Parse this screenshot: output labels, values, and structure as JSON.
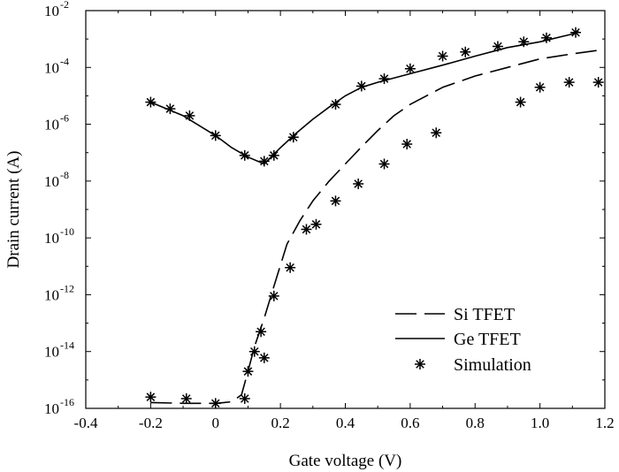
{
  "chart_data": {
    "type": "line",
    "xlabel": "Gate voltage (V)",
    "ylabel": "Drain current (A)",
    "xlim": [
      -0.4,
      1.2
    ],
    "ylim": [
      1e-16,
      0.01
    ],
    "yscale": "log",
    "x_ticks": [
      "-0.4",
      "-0.2",
      "0",
      "0.2",
      "0.4",
      "0.6",
      "0.8",
      "1.0",
      "1.2"
    ],
    "y_ticks": [
      {
        "base": "10",
        "exp": "-16"
      },
      {
        "base": "10",
        "exp": "-14"
      },
      {
        "base": "10",
        "exp": "-12"
      },
      {
        "base": "10",
        "exp": "-10"
      },
      {
        "base": "10",
        "exp": "-8"
      },
      {
        "base": "10",
        "exp": "-6"
      },
      {
        "base": "10",
        "exp": "-4"
      },
      {
        "base": "10",
        "exp": "-2"
      }
    ],
    "grid": false,
    "legend_position": "bottom-right",
    "series": [
      {
        "name": "Si TFET",
        "style": "dashed",
        "x": [
          -0.2,
          -0.1,
          0.0,
          0.05,
          0.08,
          0.1,
          0.12,
          0.15,
          0.18,
          0.22,
          0.26,
          0.3,
          0.35,
          0.4,
          0.45,
          0.5,
          0.55,
          0.6,
          0.7,
          0.8,
          0.9,
          1.0,
          1.1,
          1.18
        ],
        "y": [
          1.6e-16,
          1.5e-16,
          1.5e-16,
          1.7e-16,
          3e-16,
          2e-15,
          1.5e-14,
          1.5e-13,
          2e-12,
          6e-11,
          4e-10,
          2e-09,
          1e-08,
          4e-08,
          1.6e-07,
          6e-07,
          2e-06,
          5e-06,
          2e-05,
          5e-05,
          0.0001,
          0.0002,
          0.0003,
          0.0004
        ]
      },
      {
        "name": "Ge TFET",
        "style": "solid",
        "x": [
          -0.2,
          -0.1,
          0.0,
          0.05,
          0.1,
          0.15,
          0.2,
          0.25,
          0.3,
          0.35,
          0.4,
          0.45,
          0.5,
          0.6,
          0.7,
          0.8,
          0.9,
          1.0,
          1.1,
          1.12
        ],
        "y": [
          6e-06,
          2e-06,
          4e-07,
          1.5e-07,
          7e-08,
          4e-08,
          1.5e-07,
          5e-07,
          1.5e-06,
          4e-06,
          1e-05,
          2e-05,
          3e-05,
          6e-05,
          0.00012,
          0.00025,
          0.0005,
          0.0008,
          0.0015,
          0.0018
        ]
      },
      {
        "name": "Simulation",
        "style": "markers",
        "x": [
          -0.2,
          -0.14,
          -0.08,
          0.0,
          0.09,
          0.15,
          0.18,
          0.24,
          0.37,
          0.45,
          0.52,
          0.6,
          0.7,
          0.77,
          0.87,
          0.95,
          1.02,
          1.11,
          -0.2,
          -0.09,
          0.0,
          0.09,
          0.1,
          0.12,
          0.14,
          0.15,
          0.18,
          0.23,
          0.28,
          0.31,
          0.37,
          0.44,
          0.52,
          0.59,
          0.68,
          0.94,
          1.0,
          1.09,
          1.18
        ],
        "y": [
          6e-06,
          3.5e-06,
          2e-06,
          4e-07,
          8e-08,
          5e-08,
          8e-08,
          3.5e-07,
          5e-06,
          2.2e-05,
          4e-05,
          9e-05,
          0.00025,
          0.00035,
          0.00055,
          0.0008,
          0.0011,
          0.0017,
          2.5e-16,
          2.2e-16,
          1.5e-16,
          2.2e-16,
          2e-15,
          1e-14,
          5e-14,
          6e-15,
          9e-13,
          9e-12,
          2e-10,
          3e-10,
          2e-09,
          8e-09,
          4e-08,
          2e-07,
          5e-07,
          6e-06,
          2e-05,
          3e-05,
          3e-05
        ]
      }
    ]
  }
}
